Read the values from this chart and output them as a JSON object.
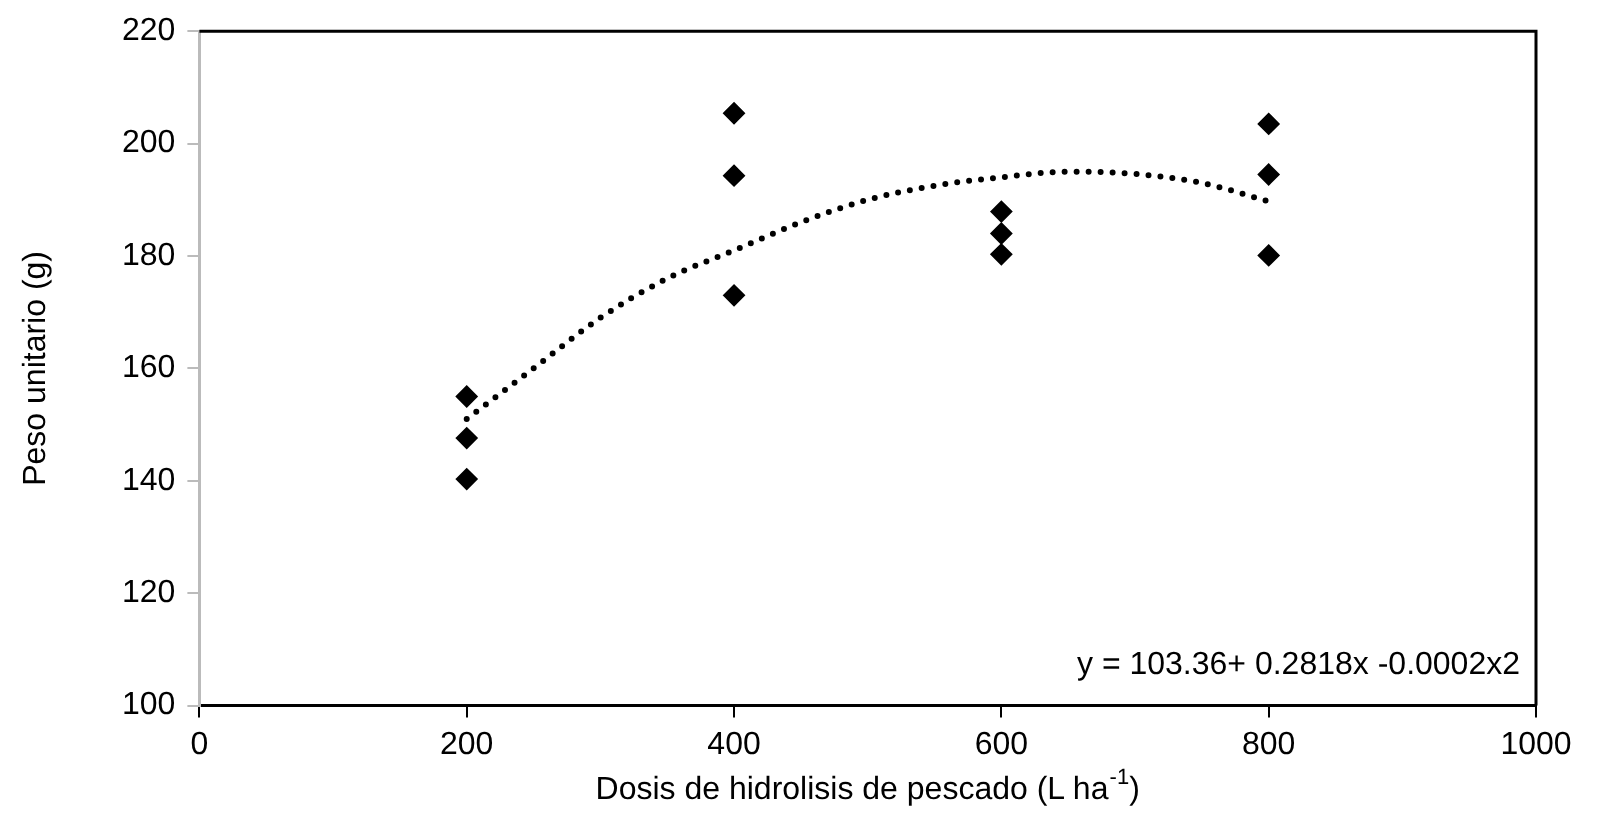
{
  "chart_data": {
    "type": "scatter",
    "xlabel": "Dosis de hidrolisis de pescado (L ha$^{-1}$)",
    "ylabel": "Peso unitario (g)",
    "marker": "diamond",
    "grid": false,
    "legend": false,
    "xlim": [
      0,
      1000
    ],
    "xticks": [
      0,
      200,
      400,
      600,
      800,
      1000
    ],
    "ylim": [
      100,
      220
    ],
    "yticks": [
      100,
      120,
      140,
      160,
      180,
      200,
      220
    ],
    "series": [
      {
        "type": "scatter",
        "color": "#000000",
        "x": [
          200,
          200,
          200,
          400,
          400,
          400,
          600,
          600,
          600,
          800,
          800,
          800
        ],
        "values": [
          155,
          147.6,
          140.3,
          205.4,
          194.3,
          173,
          187.9,
          184,
          180.3,
          203.5,
          194.5,
          180.1
        ]
      },
      {
        "type": "line",
        "color": "#000000",
        "line_style": "dotted",
        "marker": "none",
        "x": [
          200,
          250,
          300,
          350,
          400,
          450,
          500,
          550,
          600,
          650,
          700,
          750,
          800
        ],
        "values": [
          151,
          160,
          169,
          176,
          181,
          186,
          190,
          192.5,
          194,
          195,
          194.6,
          193,
          189.7
        ]
      }
    ],
    "annotations": [
      "y = 103.36+ 0.2818x -0.0002x2"
    ]
  }
}
